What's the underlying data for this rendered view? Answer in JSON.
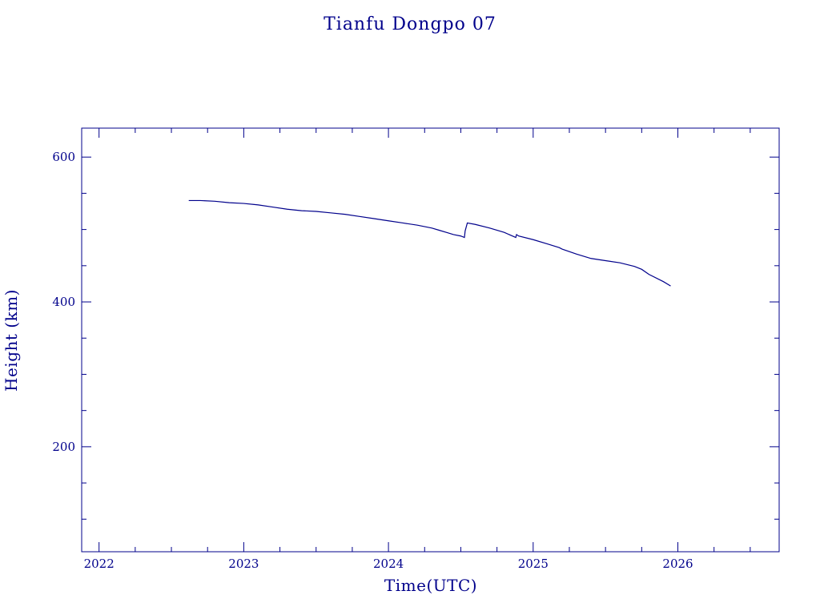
{
  "chart_data": {
    "type": "line",
    "title": "Tianfu Dongpo 07",
    "xlabel": "Time(UTC)",
    "ylabel": "Height (km)",
    "xlim": [
      2021.88,
      2026.7
    ],
    "ylim": [
      55,
      640
    ],
    "xticks": [
      2022,
      2023,
      2024,
      2025,
      2026
    ],
    "xtick_labels": [
      "2022",
      "2023",
      "2024",
      "2025",
      "2026"
    ],
    "yticks": [
      200,
      400,
      600
    ],
    "ytick_labels": [
      "200",
      "400",
      "600"
    ],
    "x_minor_step": 0.25,
    "y_minor_step": 50,
    "grid": false,
    "colors": {
      "axes": "#00008b",
      "line": "#00008b",
      "text": "#00008b"
    },
    "series": [
      {
        "x": [
          2022.62,
          2022.7,
          2022.8,
          2022.9,
          2023.0,
          2023.1,
          2023.2,
          2023.3,
          2023.4,
          2023.5,
          2023.6,
          2023.7,
          2023.8,
          2023.9,
          2024.0,
          2024.1,
          2024.2,
          2024.3,
          2024.35,
          2024.4,
          2024.45,
          2024.5,
          2024.525,
          2024.53,
          2024.545,
          2024.6,
          2024.7,
          2024.8,
          2024.88,
          2024.885,
          2024.9,
          2025.0,
          2025.1,
          2025.18,
          2025.2,
          2025.3,
          2025.4,
          2025.5,
          2025.6,
          2025.7,
          2025.75,
          2025.8,
          2025.9,
          2025.95
        ],
        "y": [
          540,
          540,
          539,
          537,
          536,
          534,
          531,
          528,
          526,
          525,
          523,
          521,
          518,
          515,
          512,
          509,
          506,
          502,
          499,
          496,
          493,
          491,
          489,
          498,
          509,
          507,
          502,
          496,
          489,
          493,
          491,
          486,
          480,
          475,
          473,
          466,
          460,
          457,
          454,
          449,
          445,
          438,
          428,
          422
        ]
      }
    ]
  }
}
